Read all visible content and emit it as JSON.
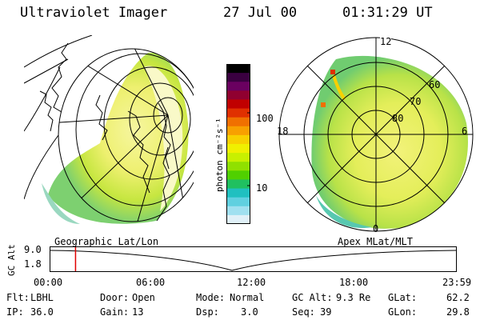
{
  "header": {
    "instrument": "Ultraviolet Imager",
    "date": "27 Jul 00",
    "time": "01:31:29 UT"
  },
  "colorbar": {
    "label": "photon cm⁻²s⁻¹",
    "ticks": [
      "100",
      "10"
    ],
    "colors": [
      "#000000",
      "#3a0040",
      "#6a0060",
      "#900030",
      "#c00000",
      "#e03000",
      "#f07000",
      "#f8a000",
      "#f8d000",
      "#f0f000",
      "#c8f000",
      "#90e000",
      "#50d000",
      "#20c060",
      "#20c0c0",
      "#60d0e0",
      "#a0e0f0",
      "#e0f0f8"
    ]
  },
  "left_map": {
    "caption": "Geographic Lat/Lon"
  },
  "right_map": {
    "caption": "Apex MLat/MLT",
    "mlt_labels": {
      "top": "12",
      "left": "18",
      "right": "6",
      "bottom": "0"
    },
    "lat_labels": [
      "60",
      "70",
      "80"
    ]
  },
  "timeline": {
    "axis_label": "GC Alt",
    "y_ticks": [
      "9.0",
      "1.8"
    ],
    "x_ticks": [
      "00:00",
      "06:00",
      "12:00",
      "18:00",
      "23:59"
    ],
    "marker_color": "#e00000",
    "marker_time_fraction": 0.062
  },
  "info": {
    "flt_label": "Flt:",
    "flt_value": "LBHL",
    "ip_label": "IP:",
    "ip_value": "36.0",
    "door_label": "Door:",
    "door_value": "Open",
    "gain_label": "Gain:",
    "gain_value": "13",
    "mode_label": "Mode:",
    "mode_value": "Normal",
    "dsp_label": "Dsp:",
    "dsp_value": "3.0",
    "gcalt_label": "GC Alt:",
    "gcalt_value": "9.3 Re",
    "seq_label": "Seq:",
    "seq_value": "39",
    "glat_label": "GLat:",
    "glat_value": "62.2",
    "glon_label": "GLon:",
    "glon_value": "29.8"
  }
}
